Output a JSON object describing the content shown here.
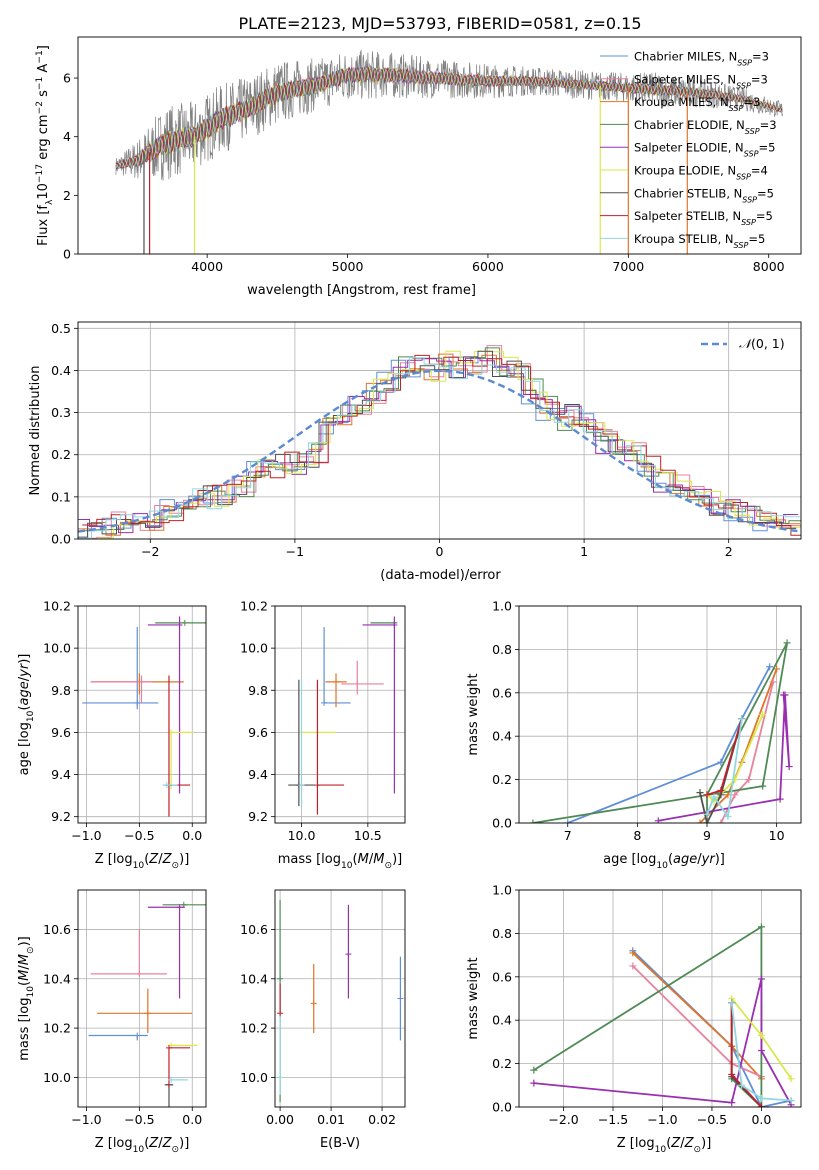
{
  "title": "PLATE=2123, MJD=53793, FIBERID=0581, z=0.15",
  "chart_data": [
    {
      "type": "line",
      "name": "spectrum",
      "xlabel": "wavelength [Angstrom, rest frame]",
      "ylabel": "Flux [f_λ10^-17 erg cm^-2 s^-1 A^-1]",
      "xlim": [
        3080,
        8230
      ],
      "ylim": [
        0,
        7.4
      ],
      "xticks": [
        4000,
        5000,
        6000,
        7000,
        8000
      ],
      "yticks": [
        0,
        2,
        4,
        6
      ],
      "grid": false,
      "legend": "top-right",
      "data_points": {
        "x": [
          3350,
          3500,
          3700,
          3900,
          4100,
          4300,
          4500,
          4800,
          5000,
          5300,
          5600,
          6000,
          6300,
          6600,
          6900,
          7200,
          7500,
          7800,
          8100
        ],
        "data_mean": [
          3.0,
          3.2,
          3.8,
          4.0,
          4.6,
          5.0,
          5.5,
          5.8,
          6.1,
          6.1,
          6.0,
          5.9,
          5.9,
          5.8,
          5.7,
          5.6,
          5.5,
          5.3,
          4.9
        ],
        "data_scatter": [
          0.3,
          0.7,
          1.3,
          1.2,
          1.2,
          1.1,
          1.1,
          0.9,
          0.9,
          0.8,
          0.7,
          0.6,
          0.5,
          0.5,
          0.5,
          0.6,
          0.5,
          0.4,
          0.3
        ]
      },
      "series": [
        {
          "name": "Chabrier MILES, N_SSP=3",
          "color": "#5f8fd8"
        },
        {
          "name": "Salpeter MILES, N_SSP=3",
          "color": "#e8829c"
        },
        {
          "name": "Kroupa MILES, N_SSP=3",
          "color": "#e0742a"
        },
        {
          "name": "Chabrier ELODIE, N_SSP=3",
          "color": "#4f8a54"
        },
        {
          "name": "Salpeter ELODIE, N_SSP=5",
          "color": "#9a2fb0"
        },
        {
          "name": "Kroupa ELODIE, N_SSP=4",
          "color": "#d9e84a"
        },
        {
          "name": "Chabrier STELIB, N_SSP=5",
          "color": "#505050"
        },
        {
          "name": "Salpeter STELIB, N_SSP=5",
          "color": "#c0202a"
        },
        {
          "name": "Kroupa STELIB, N_SSP=5",
          "color": "#8fd8e0"
        }
      ],
      "sharp_drops": [
        {
          "x": 3550,
          "color": "#505050"
        },
        {
          "x": 3590,
          "color": "#c0202a"
        },
        {
          "x": 3910,
          "color": "#d9e84a"
        },
        {
          "x": 6800,
          "color": "#d9e84a"
        },
        {
          "x": 7000,
          "color": "#e0742a"
        },
        {
          "x": 7420,
          "color": "#e0742a"
        }
      ]
    },
    {
      "type": "line",
      "name": "residual-histogram",
      "xlabel": "(data-model)/error",
      "ylabel": "Normed distribution",
      "xlim": [
        -2.5,
        2.5
      ],
      "ylim": [
        0,
        0.515
      ],
      "xticks": [
        -2,
        -1,
        0,
        1,
        2
      ],
      "yticks": [
        0.0,
        0.1,
        0.2,
        0.3,
        0.4,
        0.5
      ],
      "grid": true,
      "legend": "top-right",
      "legend_label": "N(0,1)",
      "bins": {
        "start": -2.5,
        "width": 0.1,
        "count": 50
      },
      "base_values": [
        0.02,
        0.03,
        0.035,
        0.04,
        0.045,
        0.05,
        0.065,
        0.08,
        0.1,
        0.1,
        0.11,
        0.13,
        0.16,
        0.175,
        0.18,
        0.18,
        0.2,
        0.26,
        0.3,
        0.32,
        0.35,
        0.375,
        0.41,
        0.41,
        0.4,
        0.42,
        0.41,
        0.42,
        0.43,
        0.41,
        0.4,
        0.35,
        0.31,
        0.28,
        0.29,
        0.28,
        0.23,
        0.22,
        0.2,
        0.17,
        0.14,
        0.13,
        0.11,
        0.095,
        0.07,
        0.07,
        0.05,
        0.04,
        0.04,
        0.035
      ]
    },
    {
      "type": "scatter",
      "name": "age-vs-Z",
      "xlabel": "Z [log10(Z/Z⊙)]",
      "ylabel": "age [log10(age/yr)]",
      "xlim": [
        -1.08,
        0.13
      ],
      "ylim": [
        9.17,
        10.2
      ],
      "xticks": [
        -1.0,
        -0.5,
        0.0
      ],
      "yticks": [
        9.2,
        9.4,
        9.6,
        9.8,
        10.0,
        10.2
      ],
      "grid": true,
      "points": [
        {
          "color": "#5f8fd8",
          "x": -0.52,
          "y": 9.74,
          "xerr": [
            0.52,
            0.2
          ],
          "yerr": [
            0.03,
            0.36
          ]
        },
        {
          "color": "#e0742a",
          "x": -0.5,
          "y": 9.84,
          "xerr": [
            0.46,
            0.42
          ],
          "yerr": [
            0.06,
            0.04
          ]
        },
        {
          "color": "#e8829c",
          "x": -0.48,
          "y": 9.84,
          "xerr": [
            0.48,
            0.1
          ],
          "yerr": [
            0.1,
            0.03
          ]
        },
        {
          "color": "#4f8a54",
          "x": -0.07,
          "y": 10.12,
          "xerr": [
            0.28,
            0.2
          ],
          "yerr": [
            0.0,
            0.0
          ]
        },
        {
          "color": "#9a2fb0",
          "x": -0.12,
          "y": 10.11,
          "xerr": [
            0.3,
            0.0
          ],
          "yerr": [
            0.8,
            0.04
          ]
        },
        {
          "color": "#d9e84a",
          "x": -0.2,
          "y": 9.6,
          "xerr": [
            0.0,
            0.21
          ],
          "yerr": [
            0.27,
            0.0
          ]
        },
        {
          "color": "#505050",
          "x": -0.22,
          "y": 9.35,
          "xerr": [
            0.04,
            0.03
          ],
          "yerr": [
            0.0,
            0.0
          ]
        },
        {
          "color": "#c0202a",
          "x": -0.22,
          "y": 9.35,
          "xerr": [
            0.0,
            0.2
          ],
          "yerr": [
            0.15,
            0.52
          ]
        },
        {
          "color": "#8fd8e0",
          "x": -0.24,
          "y": 9.35,
          "xerr": [
            0.04,
            0.1
          ],
          "yerr": [
            0.0,
            0.0
          ]
        }
      ]
    },
    {
      "type": "scatter",
      "name": "age-vs-mass",
      "xlabel": "mass [log10(M/M⊙)]",
      "ylabel": "",
      "xlim": [
        9.8,
        10.78
      ],
      "ylim": [
        9.17,
        10.2
      ],
      "xticks": [
        10.0,
        10.5
      ],
      "yticks": [
        9.2,
        9.4,
        9.6,
        9.8,
        10.0,
        10.2
      ],
      "grid": true,
      "points": [
        {
          "color": "#5f8fd8",
          "x": 10.17,
          "y": 9.74,
          "xerr": [
            0.0,
            0.2
          ],
          "yerr": [
            0.0,
            0.36
          ]
        },
        {
          "color": "#e0742a",
          "x": 10.26,
          "y": 9.84,
          "xerr": [
            0.08,
            0.08
          ],
          "yerr": [
            0.12,
            0.04
          ]
        },
        {
          "color": "#e8829c",
          "x": 10.42,
          "y": 9.83,
          "xerr": [
            0.12,
            0.2
          ],
          "yerr": [
            0.05,
            0.11
          ]
        },
        {
          "color": "#4f8a54",
          "x": 10.7,
          "y": 10.12,
          "xerr": [
            0.18,
            0.02
          ],
          "yerr": [
            0.0,
            0.0
          ]
        },
        {
          "color": "#9a2fb0",
          "x": 10.7,
          "y": 10.11,
          "xerr": [
            0.24,
            0.0
          ],
          "yerr": [
            0.8,
            0.04
          ]
        },
        {
          "color": "#d9e84a",
          "x": 10.0,
          "y": 9.6,
          "xerr": [
            0.0,
            0.26
          ],
          "yerr": [
            0.0,
            0.0
          ]
        },
        {
          "color": "#505050",
          "x": 9.98,
          "y": 9.35,
          "xerr": [
            0.08,
            0.12
          ],
          "yerr": [
            0.1,
            0.5
          ]
        },
        {
          "color": "#c0202a",
          "x": 10.12,
          "y": 9.35,
          "xerr": [
            0.0,
            0.2
          ],
          "yerr": [
            0.14,
            0.5
          ]
        },
        {
          "color": "#8fd8e0",
          "x": 10.0,
          "y": 9.35,
          "xerr": [
            0.0,
            0.0
          ],
          "yerr": [
            0.1,
            0.5
          ]
        }
      ]
    },
    {
      "type": "line",
      "name": "mass-weight-vs-age",
      "xlabel": "age [log10(age/yr)]",
      "ylabel": "mass weight",
      "xlim": [
        6.3,
        10.35
      ],
      "ylim": [
        0,
        1
      ],
      "xticks": [
        7,
        8,
        9,
        10
      ],
      "yticks": [
        0.0,
        0.2,
        0.4,
        0.6,
        0.8,
        1.0
      ],
      "grid": true,
      "series": [
        {
          "color": "#5f8fd8",
          "x": [
            7.0,
            9.2,
            9.5,
            9.9
          ],
          "y": [
            0.0,
            0.28,
            0.48,
            0.72
          ]
        },
        {
          "color": "#e0742a",
          "x": [
            8.9,
            9.3,
            9.5,
            10.0
          ],
          "y": [
            0.0,
            0.13,
            0.28,
            0.71
          ]
        },
        {
          "color": "#e8829c",
          "x": [
            9.2,
            9.4,
            9.6,
            9.95
          ],
          "y": [
            0.0,
            0.13,
            0.2,
            0.65
          ]
        },
        {
          "color": "#4f8a54",
          "x": [
            6.5,
            9.8,
            10.15,
            9.0,
            9.0
          ],
          "y": [
            0.0,
            0.17,
            0.83,
            0.13,
            0.0
          ]
        },
        {
          "color": "#9a2fb0",
          "x": [
            8.3,
            10.05,
            10.12,
            10.18,
            10.1
          ],
          "y": [
            0.01,
            0.11,
            0.59,
            0.26,
            0.59
          ]
        },
        {
          "color": "#d9e84a",
          "x": [
            9.0,
            9.1,
            9.4,
            9.8
          ],
          "y": [
            0.13,
            0.1,
            0.2,
            0.5
          ]
        },
        {
          "color": "#505050",
          "x": [
            8.9,
            9.0,
            9.2,
            9.5
          ],
          "y": [
            0.14,
            0.0,
            0.13,
            0.48
          ]
        },
        {
          "color": "#c0202a",
          "x": [
            9.0,
            9.2,
            9.5
          ],
          "y": [
            0.13,
            0.15,
            0.48
          ]
        },
        {
          "color": "#8fd8e0",
          "x": [
            9.0,
            9.1,
            9.3,
            9.5
          ],
          "y": [
            0.04,
            0.12,
            0.03,
            0.48
          ]
        }
      ]
    },
    {
      "type": "scatter",
      "name": "mass-vs-Z",
      "xlabel": "Z [log10(Z/Z⊙)]",
      "ylabel": "mass [log10(M/M⊙)]",
      "xlim": [
        -1.08,
        0.13
      ],
      "ylim": [
        9.88,
        10.76
      ],
      "xticks": [
        -1.0,
        -0.5,
        0.0
      ],
      "yticks": [
        10.0,
        10.2,
        10.4,
        10.6
      ],
      "grid": true,
      "points": [
        {
          "color": "#5f8fd8",
          "x": -0.52,
          "y": 10.17,
          "xerr": [
            0.46,
            0.1
          ],
          "yerr": [
            0.02,
            0.0
          ]
        },
        {
          "color": "#e0742a",
          "x": -0.42,
          "y": 10.26,
          "xerr": [
            0.48,
            0.42
          ],
          "yerr": [
            0.08,
            0.1
          ]
        },
        {
          "color": "#e8829c",
          "x": -0.5,
          "y": 10.42,
          "xerr": [
            0.46,
            0.26
          ],
          "yerr": [
            0.0,
            0.18
          ]
        },
        {
          "color": "#4f8a54",
          "x": -0.08,
          "y": 10.7,
          "xerr": [
            0.2,
            0.26
          ],
          "yerr": [
            0.0,
            0.0
          ]
        },
        {
          "color": "#9a2fb0",
          "x": -0.12,
          "y": 10.69,
          "xerr": [
            0.3,
            0.05
          ],
          "yerr": [
            0.37,
            0.0
          ]
        },
        {
          "color": "#d9e84a",
          "x": -0.2,
          "y": 10.13,
          "xerr": [
            0.0,
            0.25
          ],
          "yerr": [
            0.0,
            0.0
          ]
        },
        {
          "color": "#505050",
          "x": -0.22,
          "y": 9.97,
          "xerr": [
            0.04,
            0.04
          ],
          "yerr": [
            0.1,
            0.0
          ]
        },
        {
          "color": "#c0202a",
          "x": -0.22,
          "y": 10.12,
          "xerr": [
            0.0,
            0.2
          ],
          "yerr": [
            0.16,
            0.0
          ]
        },
        {
          "color": "#8fd8e0",
          "x": -0.2,
          "y": 9.99,
          "xerr": [
            0.0,
            0.16
          ],
          "yerr": [
            0.0,
            0.0
          ]
        }
      ]
    },
    {
      "type": "scatter",
      "name": "mass-vs-EBV",
      "xlabel": "E(B-V)",
      "ylabel": "",
      "xlim": [
        -0.001,
        0.0245
      ],
      "ylim": [
        9.88,
        10.76
      ],
      "xticks": [
        0.0,
        0.01,
        0.02
      ],
      "yticks": [
        10.0,
        10.2,
        10.4,
        10.6
      ],
      "grid": true,
      "points": [
        {
          "color": "#4f8a54",
          "x": 0.0,
          "y": 10.4,
          "xerr": [
            0.0,
            0.0
          ],
          "yerr": [
            0.5,
            0.32
          ]
        },
        {
          "color": "#8fd8e0",
          "x": 0.0,
          "y": 10.0,
          "xerr": [
            0.0,
            0.0
          ],
          "yerr": [
            0.07,
            0.27
          ]
        },
        {
          "color": "#c0202a",
          "x": 0.0,
          "y": 10.26,
          "xerr": [
            0.0,
            0.0
          ],
          "yerr": [
            0.0,
            0.12
          ]
        },
        {
          "color": "#e0742a",
          "x": 0.0066,
          "y": 10.3,
          "xerr": [
            0.0,
            0.0
          ],
          "yerr": [
            0.12,
            0.16
          ]
        },
        {
          "color": "#9a2fb0",
          "x": 0.0134,
          "y": 10.5,
          "xerr": [
            0.0,
            0.0
          ],
          "yerr": [
            0.18,
            0.2
          ]
        },
        {
          "color": "#5f8fd8",
          "x": 0.0236,
          "y": 10.32,
          "xerr": [
            0.0,
            0.0
          ],
          "yerr": [
            0.17,
            0.17
          ]
        }
      ]
    },
    {
      "type": "line",
      "name": "mass-weight-vs-Z",
      "xlabel": "Z [log10(Z/Z⊙)]",
      "ylabel": "mass weight",
      "xlim": [
        -2.45,
        0.4
      ],
      "ylim": [
        0,
        1
      ],
      "xticks": [
        -2.0,
        -1.5,
        -1.0,
        -0.5,
        0.0
      ],
      "yticks": [
        0.0,
        0.2,
        0.4,
        0.6,
        0.8,
        1.0
      ],
      "grid": true,
      "series": [
        {
          "color": "#5f8fd8",
          "x": [
            -1.3,
            -0.3,
            0.0,
            0.3
          ],
          "y": [
            0.72,
            0.28,
            0.0,
            0.03
          ]
        },
        {
          "color": "#e0742a",
          "x": [
            -1.3,
            -0.3,
            0.0
          ],
          "y": [
            0.71,
            0.28,
            0.13
          ]
        },
        {
          "color": "#e8829c",
          "x": [
            -1.3,
            -0.3,
            0.0
          ],
          "y": [
            0.65,
            0.2,
            0.14
          ]
        },
        {
          "color": "#4f8a54",
          "x": [
            -2.3,
            0.0,
            0.0,
            -0.3,
            -0.3
          ],
          "y": [
            0.17,
            0.83,
            0.0,
            0.13,
            0.48
          ]
        },
        {
          "color": "#9a2fb0",
          "x": [
            -2.3,
            -0.3,
            0.0,
            0.0,
            0.3
          ],
          "y": [
            0.11,
            0.02,
            0.59,
            0.26,
            0.01
          ]
        },
        {
          "color": "#d9e84a",
          "x": [
            -0.3,
            0.0,
            0.3
          ],
          "y": [
            0.5,
            0.33,
            0.13
          ]
        },
        {
          "color": "#505050",
          "x": [
            -0.3,
            -0.3,
            0.0
          ],
          "y": [
            0.48,
            0.14,
            0.0
          ]
        },
        {
          "color": "#c0202a",
          "x": [
            -0.3,
            -0.3,
            0.0
          ],
          "y": [
            0.48,
            0.15,
            0.0
          ]
        },
        {
          "color": "#8fd8e0",
          "x": [
            -0.3,
            -0.2,
            0.0,
            0.3
          ],
          "y": [
            0.48,
            0.1,
            0.04,
            0.03
          ]
        }
      ]
    }
  ]
}
